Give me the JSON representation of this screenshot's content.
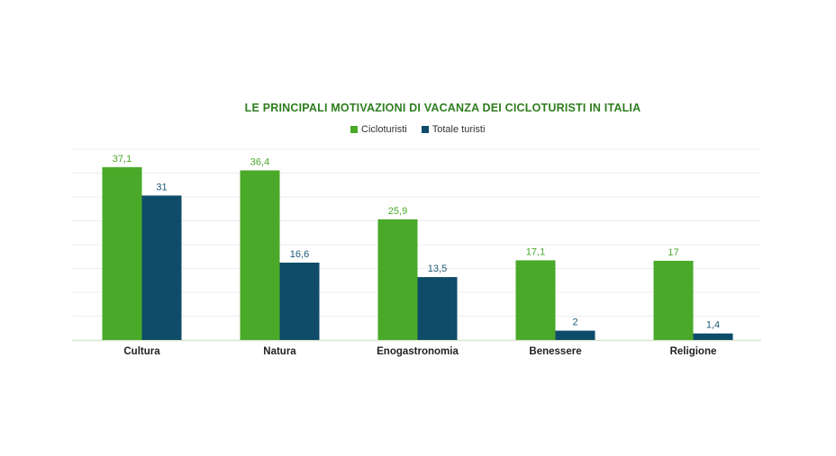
{
  "colors": {
    "cicloturisti": "#4aa928",
    "totale_turisti": "#0e4c69",
    "title": "#2f7d1f",
    "grid": "#ececec",
    "axis": "#d6e6cf"
  },
  "chart_data": {
    "type": "bar",
    "title": "LE PRINCIPALI MOTIVAZIONI DI VACANZA DEI CICLOTURISTI IN ITALIA",
    "categories": [
      "Cultura",
      "Natura",
      "Enogastronomia",
      "Benessere",
      "Religione"
    ],
    "series": [
      {
        "name": "Cicloturisti",
        "values": [
          37.1,
          36.4,
          25.9,
          17.1,
          17
        ],
        "labels": [
          "37,1",
          "36,4",
          "25,9",
          "17,1",
          "17"
        ]
      },
      {
        "name": "Totale turisti",
        "values": [
          31,
          16.6,
          13.5,
          2,
          1.4
        ],
        "labels": [
          "31",
          "16,6",
          "13,5",
          "2",
          "1,4"
        ]
      }
    ],
    "ylim": [
      0,
      40
    ],
    "grid": true,
    "legend": "top"
  }
}
